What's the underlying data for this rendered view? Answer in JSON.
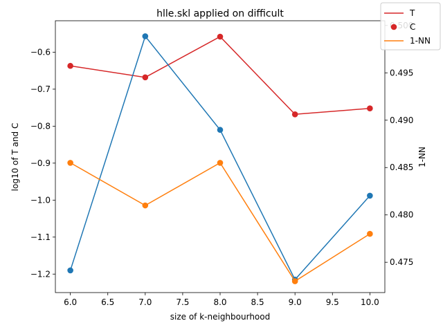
{
  "chart_data": {
    "type": "line",
    "title": "hlle.skl applied on difficult",
    "xlabel": "size of k-neighbourhood",
    "ylabel_left": "log10 of T and C",
    "ylabel_right": "1-NN",
    "x": [
      6,
      7,
      8,
      9,
      10
    ],
    "xlim": [
      5.8,
      10.2
    ],
    "ylim_left": [
      -1.25,
      -0.515
    ],
    "ylim_right": [
      0.4718,
      0.5005
    ],
    "xticks": [
      "6.0",
      "6.5",
      "7.0",
      "7.5",
      "8.0",
      "8.5",
      "9.0",
      "9.5",
      "10.0"
    ],
    "yticks_left": [
      "-1.2",
      "-1.1",
      "-1.0",
      "-0.9",
      "-0.8",
      "-0.7",
      "-0.6"
    ],
    "yticks_right": [
      "0.475",
      "0.480",
      "0.485",
      "0.490",
      "0.495",
      "0.500"
    ],
    "series": [
      {
        "name": "T",
        "axis": "left",
        "color": "#d62728",
        "values": [
          -0.637,
          -0.668,
          -0.558,
          -0.768,
          -0.752
        ]
      },
      {
        "name": "C",
        "axis": "left",
        "color": "#1f77b4",
        "values": [
          -1.19,
          -0.557,
          -0.81,
          -1.215,
          -0.988
        ]
      },
      {
        "name": "1-NN",
        "axis": "right",
        "color": "#ff7f0e",
        "values": [
          0.4855,
          0.481,
          0.4855,
          0.473,
          0.478
        ]
      }
    ],
    "legend": {
      "placement": "top-right",
      "entries": [
        "T",
        "C",
        "1-NN"
      ]
    }
  }
}
